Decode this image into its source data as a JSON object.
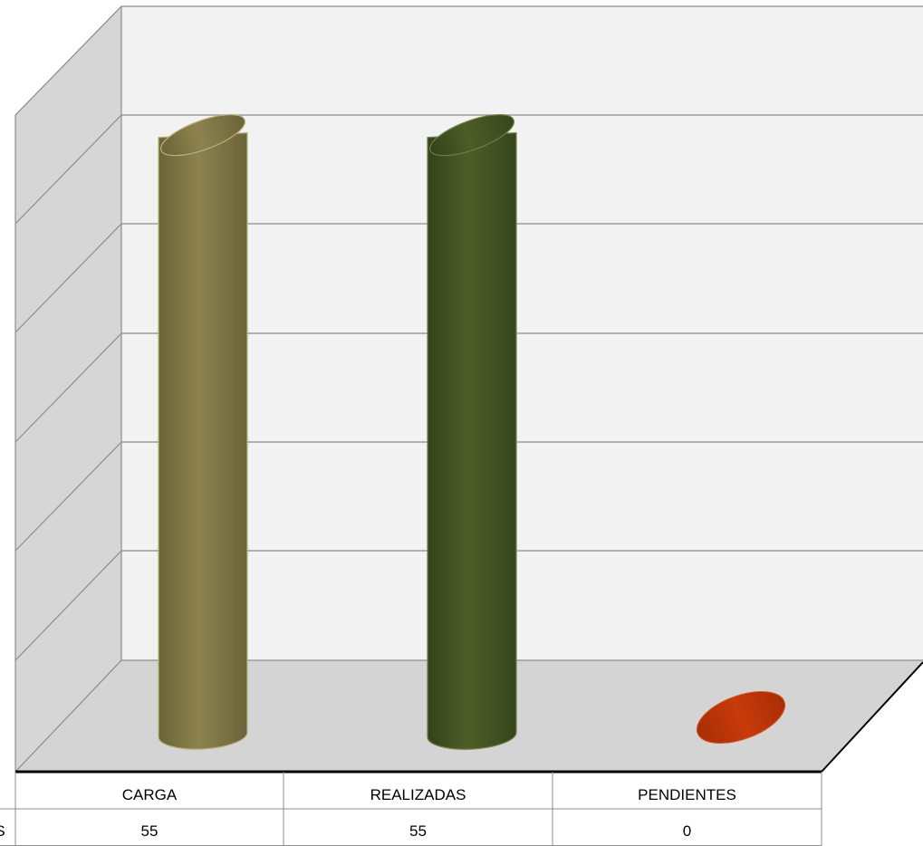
{
  "chart_data": {
    "type": "bar",
    "style": "3d-cylinder",
    "categories": [
      "CARGA",
      "REALIZADAS",
      "PENDIENTES"
    ],
    "series": [
      {
        "name": "S",
        "values": [
          55,
          55,
          0
        ],
        "value_labels": [
          "55",
          "55",
          "0"
        ]
      }
    ],
    "colors": [
      "#8a7f4c",
      "#4a5a25",
      "#c83a0a"
    ],
    "ylim": [
      0,
      60
    ],
    "y_gridlines": [
      10,
      20,
      30,
      40,
      50,
      60
    ],
    "grid": true,
    "data_table": true,
    "title": "",
    "xlabel": "",
    "ylabel": ""
  }
}
